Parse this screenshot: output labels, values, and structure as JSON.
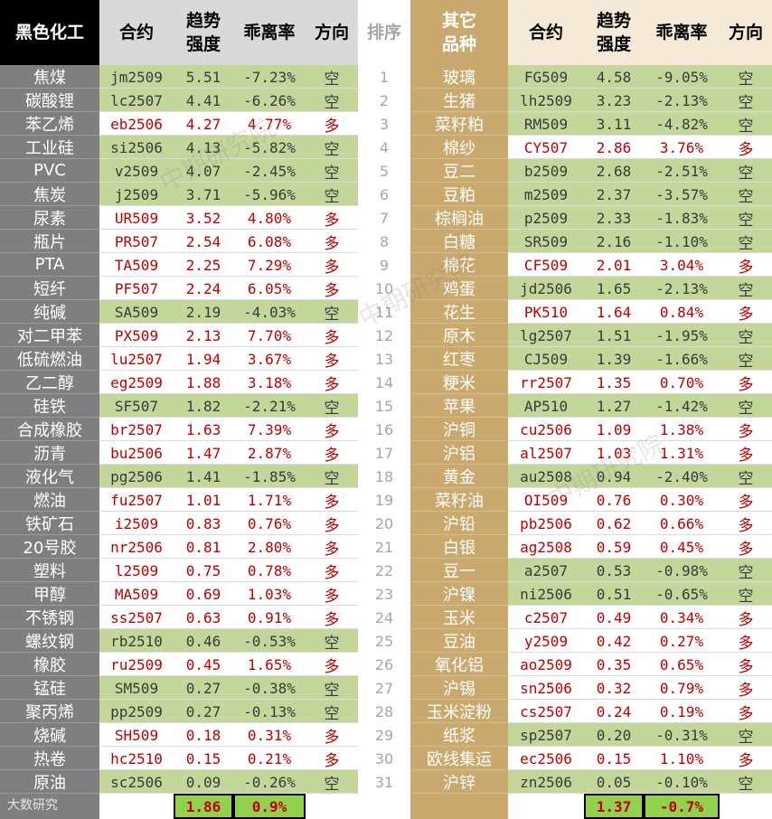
{
  "left_header": {
    "category": "黑色化工",
    "contract": "合约",
    "strength": "趋势\n强度",
    "deviation": "乖离率",
    "direction": "方向"
  },
  "rank_header": "排序",
  "right_header": {
    "category": "其它\n品种",
    "contract": "合约",
    "strength": "趋势\n强度",
    "deviation": "乖离率",
    "direction": "方向"
  },
  "left_rows": [
    {
      "name": "焦煤",
      "code": "jm2509",
      "strength": "5.51",
      "dev": "-7.23%",
      "dir": "空"
    },
    {
      "name": "碳酸锂",
      "code": "lc2507",
      "strength": "4.41",
      "dev": "-6.26%",
      "dir": "空"
    },
    {
      "name": "苯乙烯",
      "code": "eb2506",
      "strength": "4.27",
      "dev": "4.77%",
      "dir": "多"
    },
    {
      "name": "工业硅",
      "code": "si2506",
      "strength": "4.13",
      "dev": "-5.82%",
      "dir": "空"
    },
    {
      "name": "PVC",
      "code": "v2509",
      "strength": "4.07",
      "dev": "-2.45%",
      "dir": "空"
    },
    {
      "name": "焦炭",
      "code": "j2509",
      "strength": "3.71",
      "dev": "-5.96%",
      "dir": "空"
    },
    {
      "name": "尿素",
      "code": "UR509",
      "strength": "3.52",
      "dev": "4.80%",
      "dir": "多"
    },
    {
      "name": "瓶片",
      "code": "PR507",
      "strength": "2.54",
      "dev": "6.08%",
      "dir": "多"
    },
    {
      "name": "PTA",
      "code": "TA509",
      "strength": "2.25",
      "dev": "7.29%",
      "dir": "多"
    },
    {
      "name": "短纤",
      "code": "PF507",
      "strength": "2.24",
      "dev": "6.05%",
      "dir": "多"
    },
    {
      "name": "纯碱",
      "code": "SA509",
      "strength": "2.19",
      "dev": "-4.03%",
      "dir": "空"
    },
    {
      "name": "对二甲苯",
      "code": "PX509",
      "strength": "2.13",
      "dev": "7.70%",
      "dir": "多"
    },
    {
      "name": "低硫燃油",
      "code": "lu2507",
      "strength": "1.94",
      "dev": "3.67%",
      "dir": "多"
    },
    {
      "name": "乙二醇",
      "code": "eg2509",
      "strength": "1.88",
      "dev": "3.18%",
      "dir": "多"
    },
    {
      "name": "硅铁",
      "code": "SF507",
      "strength": "1.82",
      "dev": "-2.21%",
      "dir": "空"
    },
    {
      "name": "合成橡胶",
      "code": "br2507",
      "strength": "1.63",
      "dev": "7.39%",
      "dir": "多"
    },
    {
      "name": "沥青",
      "code": "bu2506",
      "strength": "1.47",
      "dev": "2.87%",
      "dir": "多"
    },
    {
      "name": "液化气",
      "code": "pg2506",
      "strength": "1.41",
      "dev": "-1.85%",
      "dir": "空"
    },
    {
      "name": "燃油",
      "code": "fu2507",
      "strength": "1.01",
      "dev": "1.71%",
      "dir": "多"
    },
    {
      "name": "铁矿石",
      "code": "i2509",
      "strength": "0.83",
      "dev": "0.76%",
      "dir": "多"
    },
    {
      "name": "20号胶",
      "code": "nr2506",
      "strength": "0.81",
      "dev": "2.80%",
      "dir": "多"
    },
    {
      "name": "塑料",
      "code": "l2509",
      "strength": "0.75",
      "dev": "0.78%",
      "dir": "多"
    },
    {
      "name": "甲醇",
      "code": "MA509",
      "strength": "0.69",
      "dev": "1.03%",
      "dir": "多"
    },
    {
      "name": "不锈钢",
      "code": "ss2507",
      "strength": "0.63",
      "dev": "0.91%",
      "dir": "多"
    },
    {
      "name": "螺纹钢",
      "code": "rb2510",
      "strength": "0.46",
      "dev": "-0.53%",
      "dir": "空"
    },
    {
      "name": "橡胶",
      "code": "ru2509",
      "strength": "0.45",
      "dev": "1.65%",
      "dir": "多"
    },
    {
      "name": "锰硅",
      "code": "SM509",
      "strength": "0.27",
      "dev": "-0.38%",
      "dir": "空"
    },
    {
      "name": "聚丙烯",
      "code": "pp2509",
      "strength": "0.27",
      "dev": "-0.13%",
      "dir": "空"
    },
    {
      "name": "烧碱",
      "code": "SH509",
      "strength": "0.18",
      "dev": "0.31%",
      "dir": "多"
    },
    {
      "name": "热卷",
      "code": "hc2510",
      "strength": "0.15",
      "dev": "0.21%",
      "dir": "多"
    },
    {
      "name": "原油",
      "code": "sc2506",
      "strength": "0.09",
      "dev": "-0.26%",
      "dir": "空"
    }
  ],
  "ranks": [
    "1",
    "2",
    "3",
    "4",
    "5",
    "6",
    "7",
    "8",
    "9",
    "10",
    "11",
    "12",
    "13",
    "14",
    "15",
    "16",
    "17",
    "18",
    "19",
    "20",
    "21",
    "22",
    "23",
    "24",
    "25",
    "26",
    "27",
    "28",
    "29",
    "30",
    "31"
  ],
  "right_rows": [
    {
      "name": "玻璃",
      "code": "FG509",
      "strength": "4.58",
      "dev": "-9.05%",
      "dir": "空"
    },
    {
      "name": "生猪",
      "code": "lh2509",
      "strength": "3.23",
      "dev": "-2.13%",
      "dir": "空"
    },
    {
      "name": "菜籽粕",
      "code": "RM509",
      "strength": "3.11",
      "dev": "-4.82%",
      "dir": "空"
    },
    {
      "name": "棉纱",
      "code": "CY507",
      "strength": "2.86",
      "dev": "3.76%",
      "dir": "多"
    },
    {
      "name": "豆二",
      "code": "b2509",
      "strength": "2.68",
      "dev": "-2.51%",
      "dir": "空"
    },
    {
      "name": "豆粕",
      "code": "m2509",
      "strength": "2.37",
      "dev": "-3.57%",
      "dir": "空"
    },
    {
      "name": "棕榈油",
      "code": "p2509",
      "strength": "2.33",
      "dev": "-1.83%",
      "dir": "空"
    },
    {
      "name": "白糖",
      "code": "SR509",
      "strength": "2.16",
      "dev": "-1.10%",
      "dir": "空"
    },
    {
      "name": "棉花",
      "code": "CF509",
      "strength": "2.01",
      "dev": "3.04%",
      "dir": "多"
    },
    {
      "name": "鸡蛋",
      "code": "jd2506",
      "strength": "1.65",
      "dev": "-2.13%",
      "dir": "空"
    },
    {
      "name": "花生",
      "code": "PK510",
      "strength": "1.64",
      "dev": "0.84%",
      "dir": "多"
    },
    {
      "name": "原木",
      "code": "lg2507",
      "strength": "1.51",
      "dev": "-1.95%",
      "dir": "空"
    },
    {
      "name": "红枣",
      "code": "CJ509",
      "strength": "1.39",
      "dev": "-1.66%",
      "dir": "空"
    },
    {
      "name": "粳米",
      "code": "rr2507",
      "strength": "1.35",
      "dev": "0.70%",
      "dir": "多"
    },
    {
      "name": "苹果",
      "code": "AP510",
      "strength": "1.27",
      "dev": "-1.42%",
      "dir": "空"
    },
    {
      "name": "沪铜",
      "code": "cu2506",
      "strength": "1.09",
      "dev": "1.38%",
      "dir": "多"
    },
    {
      "name": "沪铝",
      "code": "al2507",
      "strength": "1.03",
      "dev": "1.31%",
      "dir": "多"
    },
    {
      "name": "黄金",
      "code": "au2508",
      "strength": "0.94",
      "dev": "-2.40%",
      "dir": "空"
    },
    {
      "name": "菜籽油",
      "code": "OI509",
      "strength": "0.76",
      "dev": "0.30%",
      "dir": "多"
    },
    {
      "name": "沪铅",
      "code": "pb2506",
      "strength": "0.62",
      "dev": "0.66%",
      "dir": "多"
    },
    {
      "name": "白银",
      "code": "ag2508",
      "strength": "0.59",
      "dev": "0.45%",
      "dir": "多"
    },
    {
      "name": "豆一",
      "code": "a2507",
      "strength": "0.53",
      "dev": "-0.98%",
      "dir": "空"
    },
    {
      "name": "沪镍",
      "code": "ni2506",
      "strength": "0.51",
      "dev": "-0.65%",
      "dir": "空"
    },
    {
      "name": "玉米",
      "code": "c2507",
      "strength": "0.49",
      "dev": "0.34%",
      "dir": "多"
    },
    {
      "name": "豆油",
      "code": "y2509",
      "strength": "0.42",
      "dev": "0.27%",
      "dir": "多"
    },
    {
      "name": "氧化铝",
      "code": "ao2509",
      "strength": "0.35",
      "dev": "0.65%",
      "dir": "多"
    },
    {
      "name": "沪锡",
      "code": "sn2506",
      "strength": "0.32",
      "dev": "0.79%",
      "dir": "多"
    },
    {
      "name": "玉米淀粉",
      "code": "cs2507",
      "strength": "0.24",
      "dev": "0.19%",
      "dir": "多"
    },
    {
      "name": "纸浆",
      "code": "sp2507",
      "strength": "0.20",
      "dev": "-0.31%",
      "dir": "空"
    },
    {
      "name": "欧线集运",
      "code": "ec2506",
      "strength": "0.15",
      "dev": "1.10%",
      "dir": "多"
    },
    {
      "name": "沪锌",
      "code": "zn2506",
      "strength": "0.05",
      "dev": "-0.10%",
      "dir": "空"
    }
  ],
  "footer": {
    "left_avg_strength": "1.86",
    "left_avg_dev": "0.9%",
    "right_avg_strength": "1.37",
    "right_avg_dev": "-0.7%",
    "logo_text": "大数研究"
  },
  "watermarks": [
    "中期研究院",
    "中期研究院",
    "中期研究院"
  ],
  "colors": {
    "left_name_bg": "#7f7f7f",
    "right_name_bg": "#c9a96e",
    "short_bg": "#c4d79b",
    "long_text": "#c00000",
    "footer_box": "#92d050"
  }
}
